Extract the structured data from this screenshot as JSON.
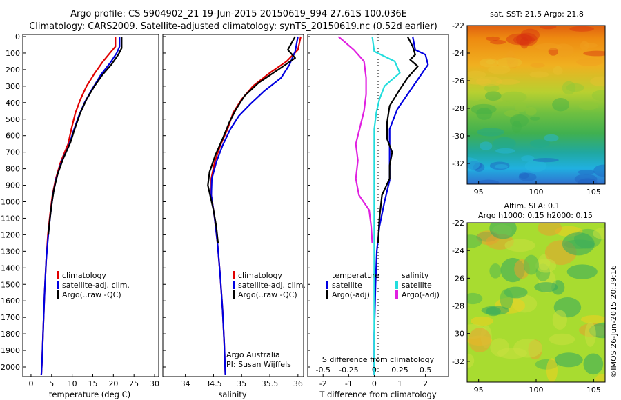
{
  "header": {
    "line1": "Argo profile: CS 5904902_21 19-Jun-2015 20150619_994 27.61S 100.036E",
    "line2": "Climatology: CARS2009. Satellite-adjusted climatology: synTS_20150619.nc (0.52d earlier)"
  },
  "credit": "©IMOS 26-Jun-2015 20:39:16",
  "colors": {
    "climatology": "#e00000",
    "satellite": "#0000e0",
    "argo": "#000000",
    "sat_salinity": "#22dddd",
    "argo_salinity": "#e020e0"
  },
  "chart_data": [
    {
      "type": "line",
      "xlabel": "temperature (deg C)",
      "xlim": [
        -2,
        31
      ],
      "xticks": [
        "0",
        "5",
        "10",
        "15",
        "20",
        "25",
        "30"
      ],
      "ylim": [
        0,
        2100
      ],
      "yticks": [
        "0",
        "100",
        "200",
        "300",
        "400",
        "500",
        "600",
        "700",
        "800",
        "900",
        "1000",
        "1100",
        "1200",
        "1300",
        "1400",
        "1500",
        "1600",
        "1700",
        "1800",
        "1900",
        "2000"
      ],
      "legend": [
        "climatology",
        "satellite-adj. clim.",
        "Argo(..raw -QC)"
      ],
      "series": [
        {
          "name": "climatology",
          "color": "#e00000",
          "points": [
            [
              20.5,
              0
            ],
            [
              20.5,
              60
            ],
            [
              19.5,
              90
            ],
            [
              17.5,
              150
            ],
            [
              15.5,
              220
            ],
            [
              13.5,
              300
            ],
            [
              12,
              380
            ],
            [
              10.8,
              460
            ],
            [
              9.8,
              560
            ],
            [
              9,
              650
            ],
            [
              7.2,
              760
            ],
            [
              6,
              860
            ],
            [
              5.2,
              960
            ],
            [
              4.6,
              1080
            ],
            [
              4.1,
              1200
            ],
            [
              3.7,
              1350
            ],
            [
              3.3,
              1550
            ],
            [
              3,
              1750
            ],
            [
              2.7,
              1950
            ],
            [
              2.5,
              2050
            ]
          ]
        },
        {
          "name": "satellite-adj. clim.",
          "color": "#0000e0",
          "points": [
            [
              21.5,
              0
            ],
            [
              21.5,
              60
            ],
            [
              20.8,
              100
            ],
            [
              19.2,
              160
            ],
            [
              17,
              230
            ],
            [
              14.8,
              320
            ],
            [
              13,
              400
            ],
            [
              11.6,
              480
            ],
            [
              10.2,
              580
            ],
            [
              9.2,
              660
            ],
            [
              7.4,
              760
            ],
            [
              6.1,
              860
            ],
            [
              5.3,
              960
            ],
            [
              4.7,
              1080
            ],
            [
              4.2,
              1200
            ],
            [
              3.7,
              1350
            ],
            [
              3.3,
              1550
            ],
            [
              3,
              1750
            ],
            [
              2.7,
              1950
            ],
            [
              2.5,
              2050
            ]
          ]
        },
        {
          "name": "Argo(..raw -QC)",
          "color": "#000000",
          "points": [
            [
              22,
              0
            ],
            [
              22,
              70
            ],
            [
              21.2,
              110
            ],
            [
              19.5,
              170
            ],
            [
              17.4,
              230
            ],
            [
              15.4,
              300
            ],
            [
              13.5,
              380
            ],
            [
              12,
              460
            ],
            [
              10.6,
              560
            ],
            [
              9.6,
              640
            ],
            [
              7.8,
              740
            ],
            [
              6.5,
              830
            ],
            [
              5.6,
              920
            ],
            [
              5.1,
              1000
            ],
            [
              4.6,
              1100
            ],
            [
              4.2,
              1200
            ]
          ]
        }
      ]
    },
    {
      "type": "line",
      "xlabel": "salinity",
      "xlim": [
        33.6,
        36.1
      ],
      "xticks": [
        "34",
        "34.5",
        "35",
        "35.5",
        "36"
      ],
      "ylim": [
        0,
        2100
      ],
      "legend": [
        "climatology",
        "satellite-adj. clim.",
        "Argo(..raw -QC)"
      ],
      "annotation": [
        "Argo Australia",
        "PI: Susan Wijffels"
      ],
      "series": [
        {
          "name": "climatology",
          "color": "#e00000",
          "points": [
            [
              36.05,
              0
            ],
            [
              36,
              80
            ],
            [
              35.8,
              150
            ],
            [
              35.5,
              220
            ],
            [
              35.2,
              300
            ],
            [
              35,
              380
            ],
            [
              34.85,
              460
            ],
            [
              34.75,
              560
            ],
            [
              34.62,
              660
            ],
            [
              34.52,
              760
            ],
            [
              34.46,
              860
            ],
            [
              34.46,
              960
            ],
            [
              34.52,
              1100
            ],
            [
              34.57,
              1250
            ],
            [
              34.62,
              1450
            ],
            [
              34.66,
              1650
            ],
            [
              34.69,
              1850
            ],
            [
              34.71,
              2050
            ]
          ]
        },
        {
          "name": "satellite-adj. clim.",
          "color": "#0000e0",
          "points": [
            [
              36.0,
              0
            ],
            [
              35.95,
              90
            ],
            [
              35.85,
              170
            ],
            [
              35.7,
              250
            ],
            [
              35.4,
              330
            ],
            [
              35.15,
              410
            ],
            [
              34.95,
              480
            ],
            [
              34.8,
              560
            ],
            [
              34.66,
              660
            ],
            [
              34.55,
              760
            ],
            [
              34.47,
              860
            ],
            [
              34.46,
              960
            ],
            [
              34.52,
              1100
            ],
            [
              34.57,
              1250
            ],
            [
              34.62,
              1450
            ],
            [
              34.66,
              1650
            ],
            [
              34.69,
              1850
            ],
            [
              34.71,
              2050
            ]
          ]
        },
        {
          "name": "Argo(..raw -QC)",
          "color": "#000000",
          "points": [
            [
              35.95,
              0
            ],
            [
              35.82,
              80
            ],
            [
              35.95,
              130
            ],
            [
              35.65,
              200
            ],
            [
              35.3,
              280
            ],
            [
              35.05,
              360
            ],
            [
              34.9,
              440
            ],
            [
              34.78,
              520
            ],
            [
              34.66,
              620
            ],
            [
              34.53,
              720
            ],
            [
              34.43,
              820
            ],
            [
              34.4,
              900
            ],
            [
              34.44,
              960
            ],
            [
              34.5,
              1050
            ],
            [
              34.55,
              1150
            ],
            [
              34.58,
              1250
            ]
          ]
        }
      ]
    },
    {
      "type": "line",
      "xlabel": "T difference from climatology",
      "xlim": [
        -2.6,
        2.9
      ],
      "xticks": [
        "-2",
        "-1",
        "0",
        "1",
        "2"
      ],
      "top_label": "S difference from climatology",
      "top_ticks": [
        "-0.5",
        "-0.25",
        "0",
        "0.25",
        "0.5"
      ],
      "ylim": [
        0,
        2100
      ],
      "legend_headers": [
        "temperature",
        "salinity"
      ],
      "legend": [
        "satellite",
        "Argo(-adj)",
        "satellite",
        "Argo(-adj)"
      ],
      "series": [
        {
          "name": "temperature satellite",
          "color": "#0000e0",
          "points": [
            [
              1.5,
              0
            ],
            [
              1.6,
              80
            ],
            [
              2.0,
              110
            ],
            [
              2.1,
              170
            ],
            [
              1.7,
              260
            ],
            [
              1.3,
              350
            ],
            [
              0.9,
              440
            ],
            [
              0.6,
              560
            ],
            [
              0.6,
              660
            ],
            [
              0.6,
              760
            ],
            [
              0.6,
              870
            ],
            [
              0.4,
              1000
            ],
            [
              0.2,
              1150
            ],
            [
              0.1,
              1300
            ],
            [
              0.05,
              1500
            ],
            [
              0,
              1800
            ],
            [
              0,
              2050
            ]
          ]
        },
        {
          "name": "temperature Argo(-adj)",
          "color": "#000000",
          "points": [
            [
              1.3,
              0
            ],
            [
              1.5,
              60
            ],
            [
              1.6,
              110
            ],
            [
              1.4,
              140
            ],
            [
              1.7,
              180
            ],
            [
              1.3,
              250
            ],
            [
              1.0,
              320
            ],
            [
              0.6,
              420
            ],
            [
              0.5,
              520
            ],
            [
              0.5,
              620
            ],
            [
              0.7,
              700
            ],
            [
              0.6,
              780
            ],
            [
              0.6,
              860
            ],
            [
              0.3,
              960
            ],
            [
              0.2,
              1100
            ],
            [
              0.15,
              1250
            ]
          ]
        },
        {
          "name": "salinity satellite",
          "color": "#22dddd",
          "points": [
            [
              -0.02,
              0
            ],
            [
              0,
              90
            ],
            [
              0.2,
              150
            ],
            [
              0.25,
              220
            ],
            [
              0.1,
              300
            ],
            [
              0.05,
              380
            ],
            [
              0.02,
              460
            ],
            [
              0,
              560
            ],
            [
              0,
              700
            ],
            [
              0,
              900
            ],
            [
              0,
              1100
            ],
            [
              0,
              1300
            ],
            [
              0,
              1500
            ],
            [
              0,
              1800
            ],
            [
              0,
              2050
            ]
          ]
        },
        {
          "name": "salinity Argo(-adj)",
          "color": "#e020e0",
          "points": [
            [
              -0.35,
              0
            ],
            [
              -0.2,
              80
            ],
            [
              -0.1,
              150
            ],
            [
              -0.08,
              250
            ],
            [
              -0.08,
              350
            ],
            [
              -0.1,
              450
            ],
            [
              -0.14,
              550
            ],
            [
              -0.18,
              650
            ],
            [
              -0.16,
              750
            ],
            [
              -0.18,
              860
            ],
            [
              -0.15,
              960
            ],
            [
              -0.05,
              1050
            ],
            [
              -0.03,
              1150
            ],
            [
              -0.02,
              1250
            ]
          ]
        }
      ]
    },
    {
      "type": "heatmap",
      "title": "sat. SST: 21.5  Argo: 21.8",
      "xticks": [
        "95",
        "100",
        "105"
      ],
      "yticks": [
        "-22",
        "-24",
        "-26",
        "-28",
        "-30",
        "-32"
      ],
      "xlim": [
        94,
        106
      ],
      "ylim": [
        -33.5,
        -22
      ]
    },
    {
      "type": "heatmap",
      "title_lines": [
        "Altim. SLA: 0.1",
        "Argo h1000: 0.15 h2000: 0.15"
      ],
      "xticks": [
        "95",
        "100",
        "105"
      ],
      "yticks": [
        "-22",
        "-24",
        "-26",
        "-28",
        "-30",
        "-32"
      ],
      "xlim": [
        94,
        106
      ],
      "ylim": [
        -33.5,
        -22
      ]
    }
  ]
}
